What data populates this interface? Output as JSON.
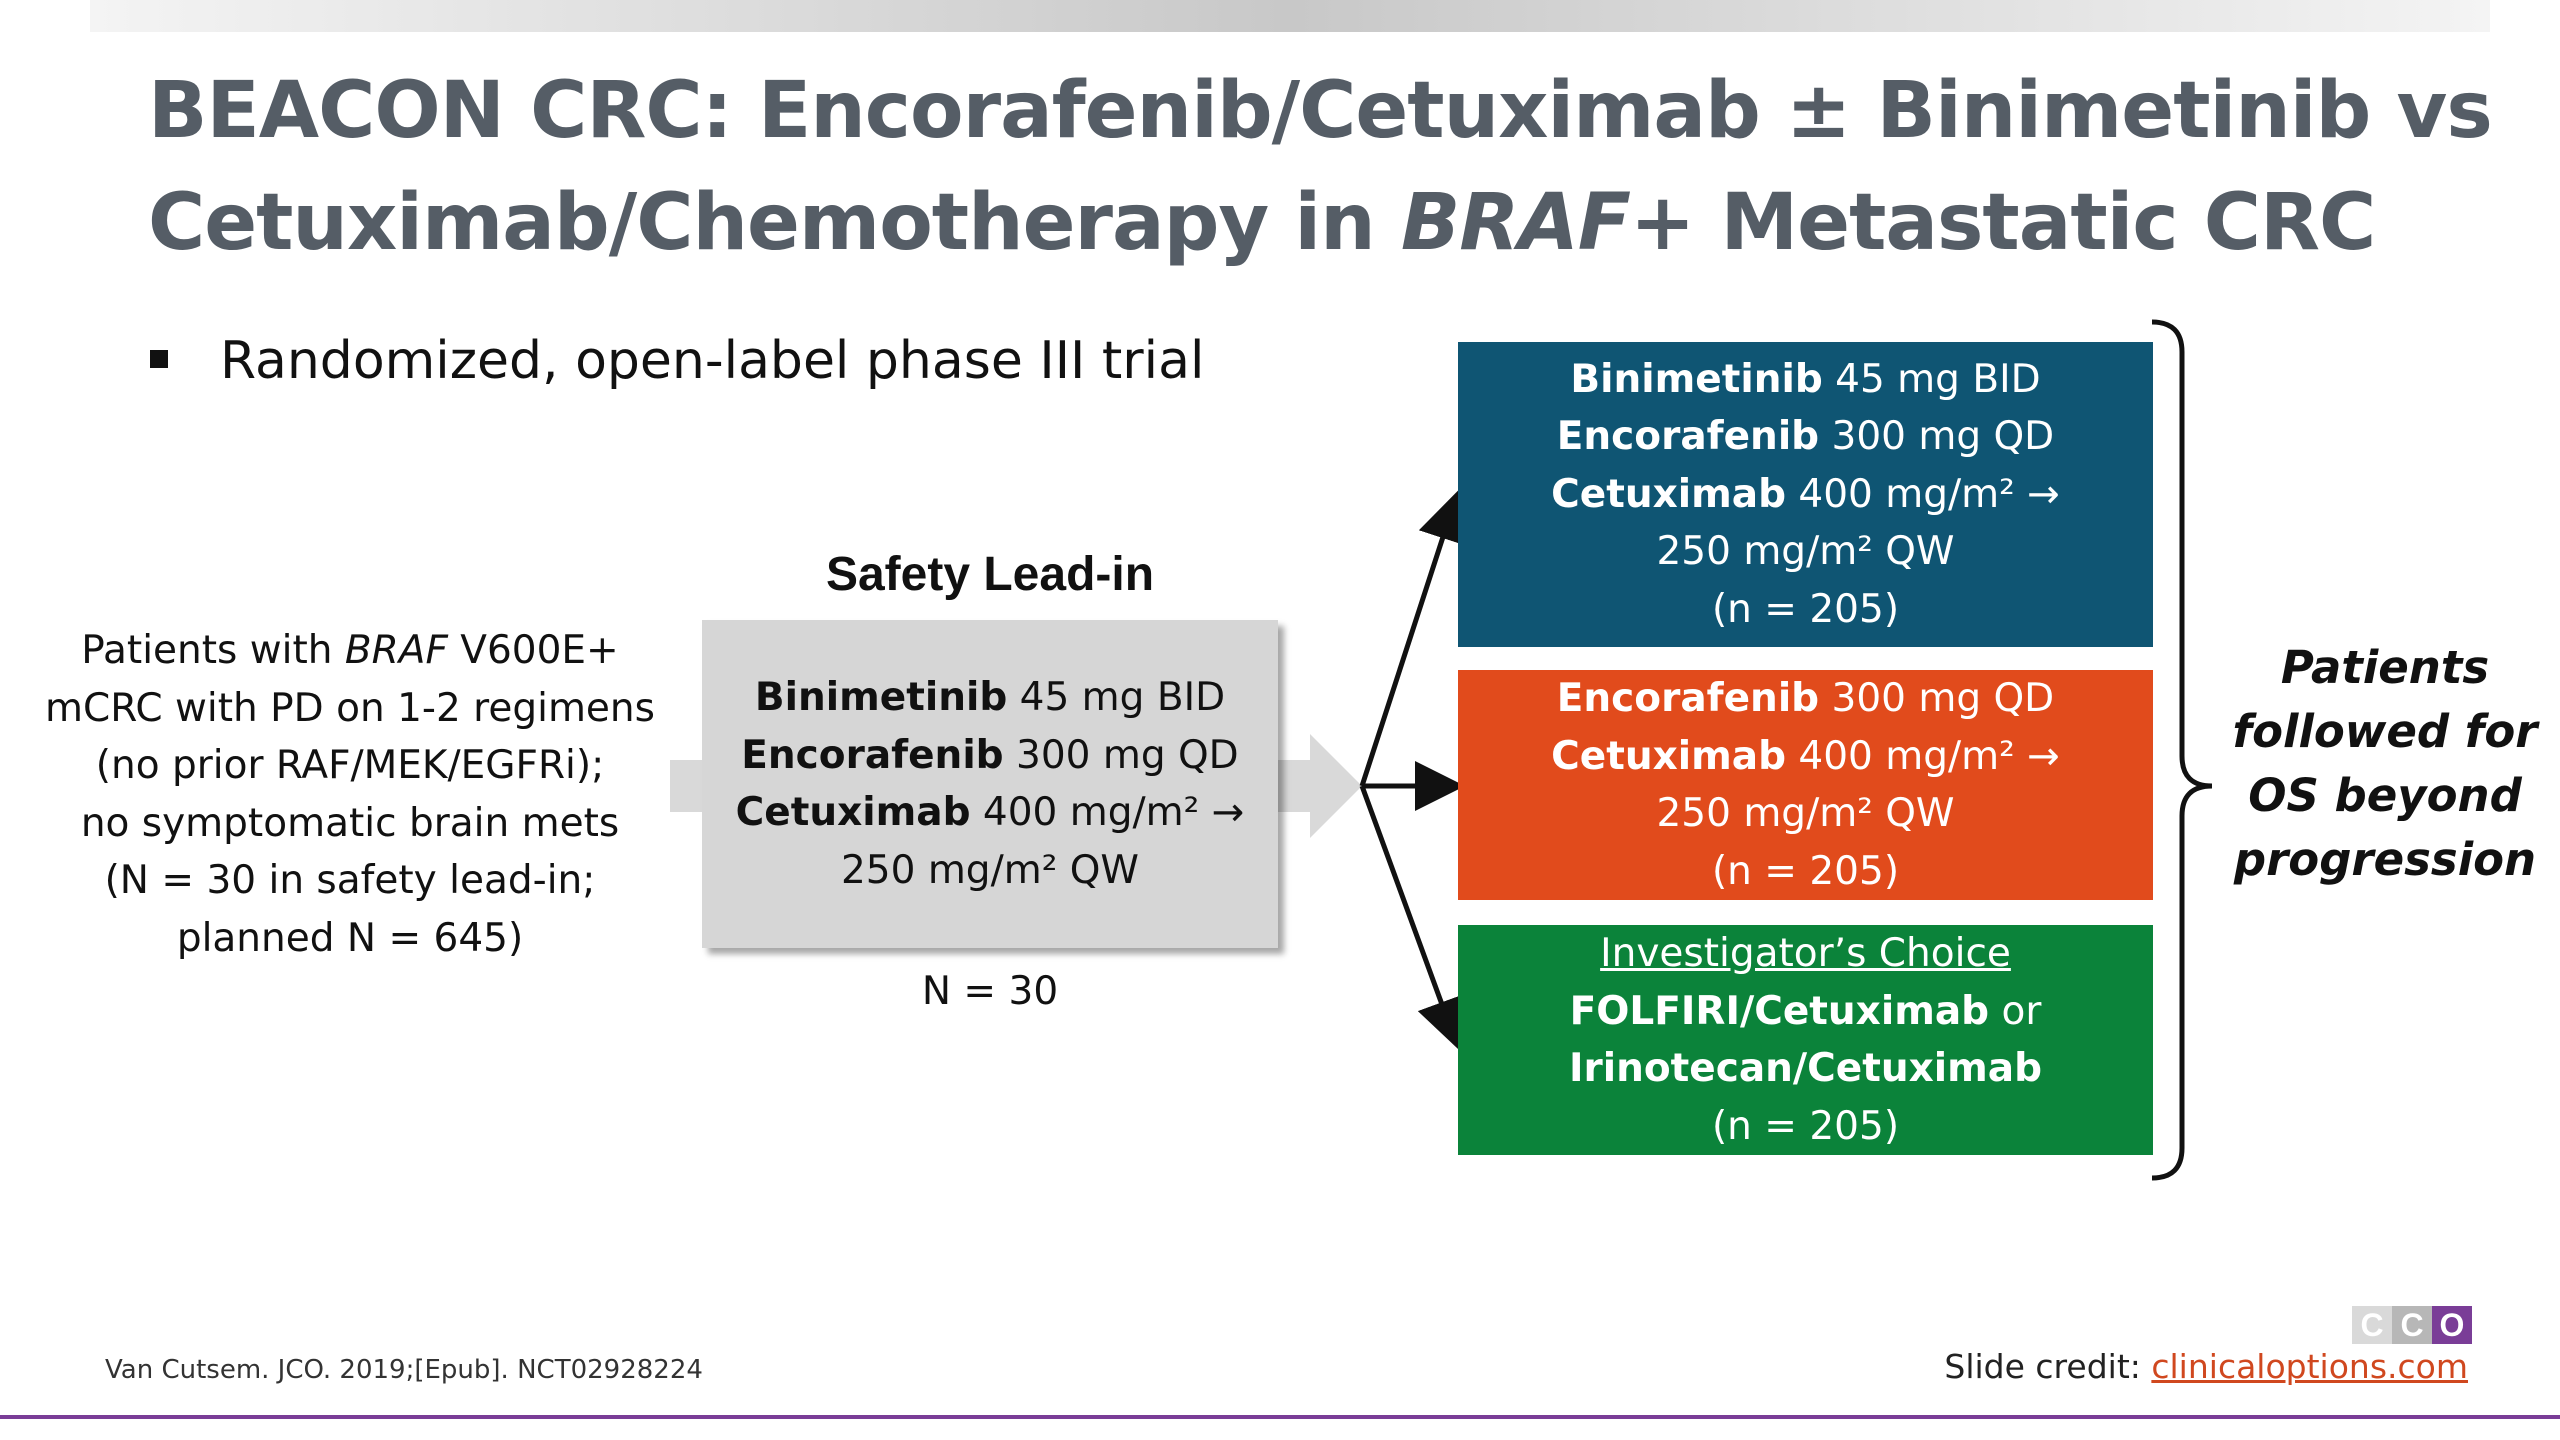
{
  "title": {
    "line1": "BEACON CRC: Encorafenib/Cetuximab ± Binimetinib vs",
    "line2_pre": "Cetuximab/Chemotherapy in ",
    "line2_italic": "BRAF",
    "line2_post": "+ Metastatic CRC"
  },
  "bullet": "Randomized, open-label phase III trial",
  "patients": {
    "l1_pre": "Patients with ",
    "l1_italic": "BRAF",
    "l1_post": " V600E+",
    "l2": "mCRC with PD on 1-2 regimens",
    "l3": "(no prior RAF/MEK/EGFRi);",
    "l4": "no symptomatic brain mets",
    "l5": "(N = 30 in safety lead-in;",
    "l6": "planned N = 645)"
  },
  "lead_in": {
    "title": "Safety Lead-in",
    "drug1": "Binimetinib",
    "dose1": " 45 mg BID",
    "drug2": "Encorafenib",
    "dose2": " 300 mg QD",
    "drug3": "Cetuximab",
    "dose3": " 400 mg/m² →",
    "dose3b": "250 mg/m² QW",
    "n": "N = 30"
  },
  "arms": {
    "triplet": {
      "drug1": "Binimetinib",
      "dose1": " 45 mg BID",
      "drug2": "Encorafenib",
      "dose2": " 300 mg QD",
      "drug3": "Cetuximab",
      "dose3": " 400 mg/m² →",
      "dose3b": "250 mg/m² QW",
      "n": "(n = 205)",
      "color": "#0f5573"
    },
    "doublet": {
      "drug1": "Encorafenib",
      "dose1": " 300 mg QD",
      "drug2": "Cetuximab",
      "dose2": " 400 mg/m² →",
      "dose2b": "250 mg/m² QW",
      "n": "(n = 205)",
      "color": "#e14b1c"
    },
    "control": {
      "header": "Investigator’s Choice",
      "line1_bold": "FOLFIRI/Cetuximab",
      "line1_post": " or",
      "line2_bold": "Irinotecan/Cetuximab",
      "n": "(n = 205)",
      "color": "#0b833a"
    }
  },
  "followed": {
    "l1": "Patients",
    "l2": "followed for",
    "l3": "OS beyond",
    "l4": "progression"
  },
  "citation": "Van Cutsem. JCO. 2019;[Epub]. NCT02928224",
  "credit": {
    "label": "Slide credit: ",
    "link": "clinicaloptions.com"
  },
  "logo": {
    "letters": [
      "C",
      "C",
      "O"
    ]
  },
  "colors": {
    "title": "#555d66",
    "accent_purple": "#7a3d97",
    "lead_box": "#d6d6d6",
    "arrow_gray": "#d9d9d9"
  }
}
